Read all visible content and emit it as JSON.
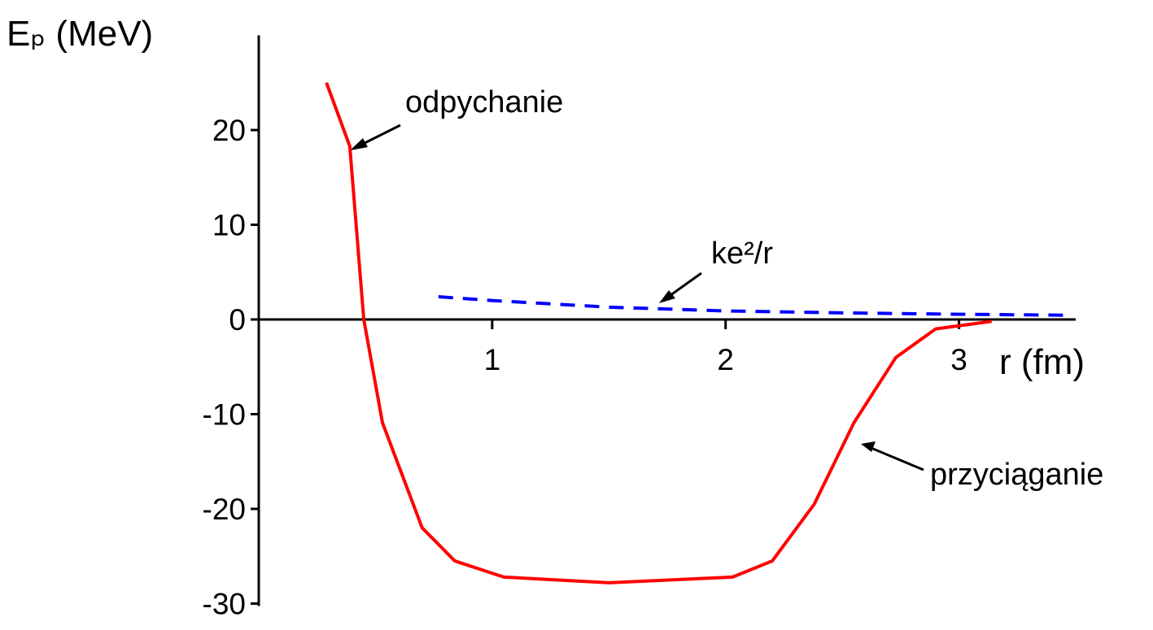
{
  "chart_data": {
    "type": "line",
    "ylabel": "Eₚ (MeV)",
    "xlabel": "r (fm)",
    "xlim": [
      0,
      3.5
    ],
    "ylim": [
      -30,
      30
    ],
    "xticks": [
      1,
      2,
      3
    ],
    "yticks": [
      -30,
      -20,
      -10,
      0,
      10,
      20
    ],
    "series": [
      {
        "color": "#ff0000",
        "style": "solid",
        "x": [
          0.29,
          0.39,
          0.45,
          0.53,
          0.7,
          0.84,
          1.05,
          1.5,
          2.03,
          2.2,
          2.38,
          2.55,
          2.73,
          2.9,
          3.14
        ],
        "values": [
          25,
          18.3,
          0,
          -10.9,
          -22,
          -25.5,
          -27.2,
          -27.8,
          -27.2,
          -25.5,
          -19.5,
          -10.9,
          -4,
          -1,
          -0.2
        ]
      },
      {
        "color": "#0000ff",
        "style": "dashed",
        "x": [
          0.77,
          1,
          1.5,
          2,
          2.5,
          3,
          3.46
        ],
        "values": [
          2.4,
          2.0,
          1.3,
          0.9,
          0.7,
          0.55,
          0.45
        ]
      }
    ],
    "annotations": [
      "odpychanie",
      "ke²/r",
      "przyciąganie"
    ]
  }
}
